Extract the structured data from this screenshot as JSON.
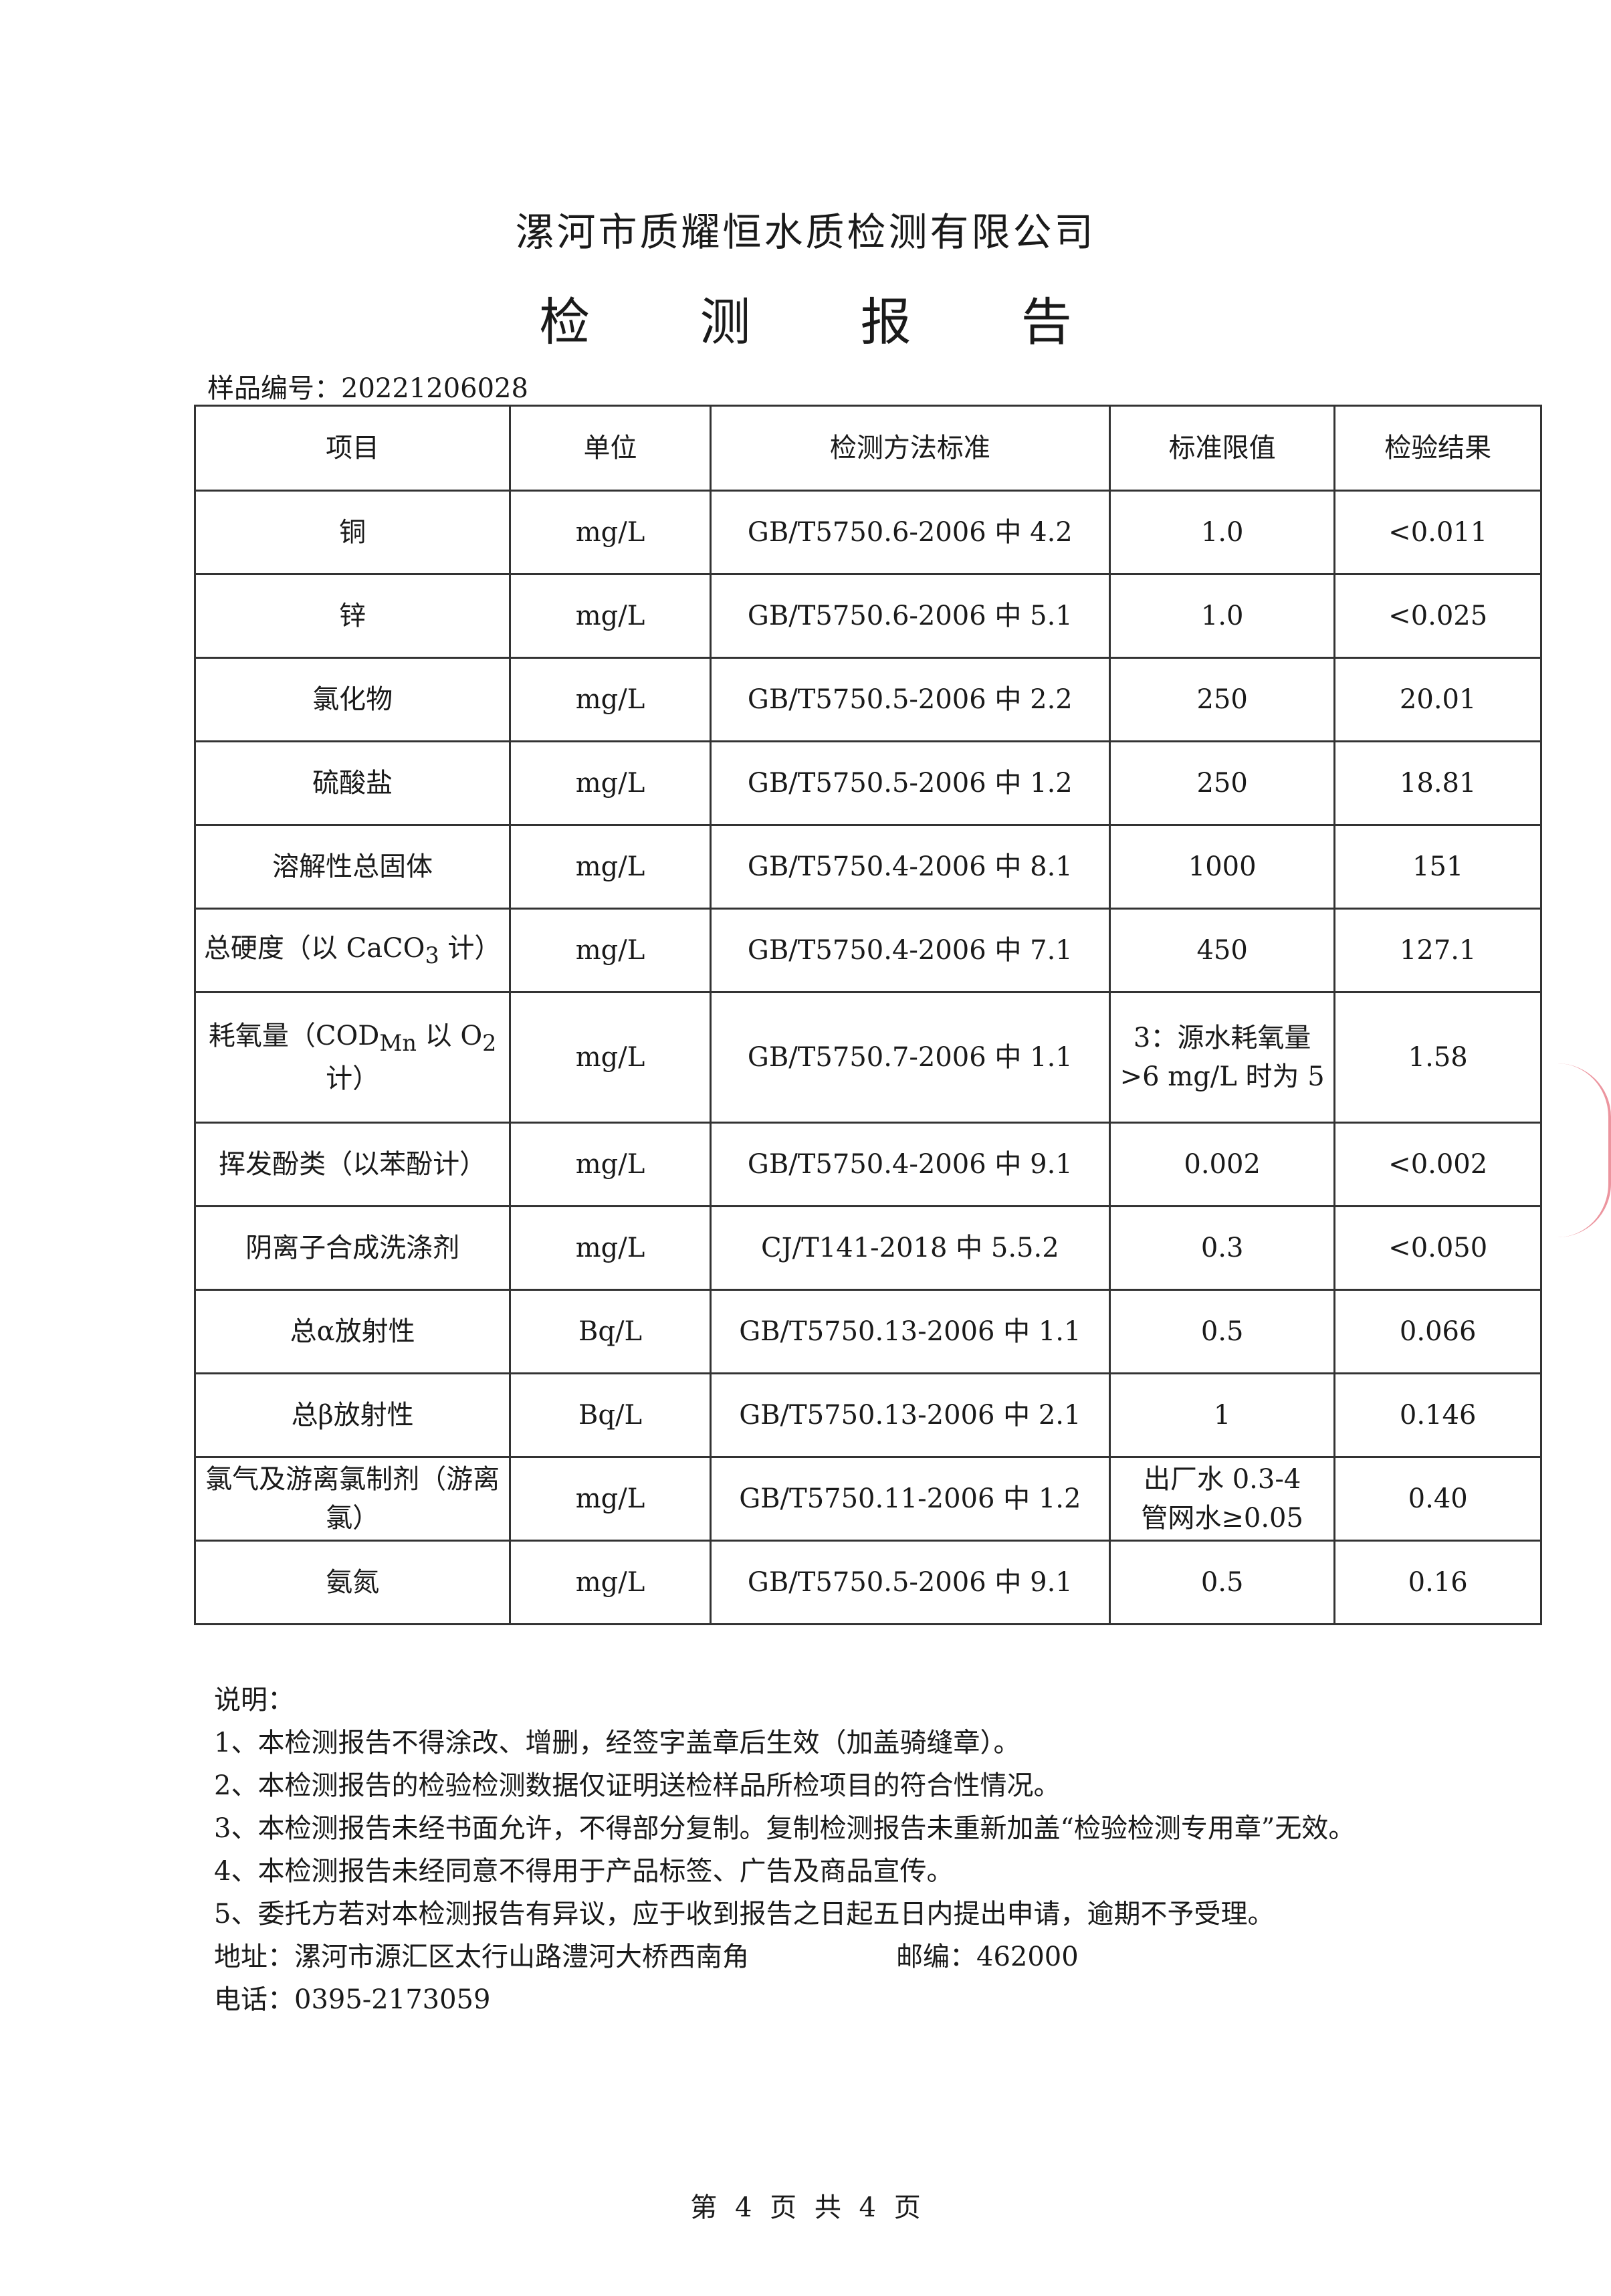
{
  "header": {
    "company": "漯河市质耀恒水质检测有限公司",
    "title": "检 测 报 告",
    "sample_no": "样品编号：20221206028"
  },
  "table": {
    "columns": [
      "项目",
      "单位",
      "检测方法标准",
      "标准限值",
      "检验结果"
    ],
    "rows": [
      {
        "item": "铜",
        "unit": "mg/L",
        "method": "GB/T5750.6-2006 中 4.2",
        "limit": "1.0",
        "result": "<0.011"
      },
      {
        "item": "锌",
        "unit": "mg/L",
        "method": "GB/T5750.6-2006 中 5.1",
        "limit": "1.0",
        "result": "<0.025"
      },
      {
        "item": "氯化物",
        "unit": "mg/L",
        "method": "GB/T5750.5-2006 中 2.2",
        "limit": "250",
        "result": "20.01"
      },
      {
        "item": "硫酸盐",
        "unit": "mg/L",
        "method": "GB/T5750.5-2006 中 1.2",
        "limit": "250",
        "result": "18.81"
      },
      {
        "item": "溶解性总固体",
        "unit": "mg/L",
        "method": "GB/T5750.4-2006 中 8.1",
        "limit": "1000",
        "result": "151"
      },
      {
        "item_pre": "总硬度（以 CaCO",
        "item_sub": "3",
        "item_post": " 计）",
        "unit": "mg/L",
        "method": "GB/T5750.4-2006 中 7.1",
        "limit": "450",
        "result": "127.1"
      },
      {
        "item_pre": "耗氧量（COD",
        "item_sub": "Mn",
        "item_mid": " 以 O",
        "item_sub2": "2",
        "item_post": " 计）",
        "unit": "mg/L",
        "method": "GB/T5750.7-2006 中 1.1",
        "limit": "3：源水耗氧量>6 mg/L 时为 5",
        "result": "1.58"
      },
      {
        "item": "挥发酚类（以苯酚计）",
        "unit": "mg/L",
        "method": "GB/T5750.4-2006 中 9.1",
        "limit": "0.002",
        "result": "<0.002"
      },
      {
        "item": "阴离子合成洗涤剂",
        "unit": "mg/L",
        "method": "CJ/T141-2018 中 5.5.2",
        "limit": "0.3",
        "result": "<0.050"
      },
      {
        "item": "总α放射性",
        "unit": "Bq/L",
        "method": "GB/T5750.13-2006 中 1.1",
        "limit": "0.5",
        "result": "0.066"
      },
      {
        "item": "总β放射性",
        "unit": "Bq/L",
        "method": "GB/T5750.13-2006 中 2.1",
        "limit": "1",
        "result": "0.146"
      },
      {
        "item": "氯气及游离氯制剂（游离氯）",
        "unit": "mg/L",
        "method": "GB/T5750.11-2006 中 1.2",
        "limit_line1": "出厂水 0.3-4",
        "limit_line2": "管网水≥0.05",
        "result": "0.40"
      },
      {
        "item": "氨氮",
        "unit": "mg/L",
        "method": "GB/T5750.5-2006 中 9.1",
        "limit": "0.5",
        "result": "0.16"
      }
    ]
  },
  "notes": {
    "heading": "说明：",
    "items": [
      "1、本检测报告不得涂改、增删，经签字盖章后生效（加盖骑缝章）。",
      "2、本检测报告的检验检测数据仅证明送检样品所检项目的符合性情况。",
      "3、本检测报告未经书面允许，不得部分复制。复制检测报告未重新加盖“检验检测专用章”无效。",
      "4、本检测报告未经同意不得用于产品标签、广告及商品宣传。",
      "5、委托方若对本检测报告有异议，应于收到报告之日起五日内提出申请，逾期不予受理。"
    ],
    "address": "地址：漯河市源汇区太行山路澧河大桥西南角",
    "postcode": "邮编：462000",
    "phone": "电话：0395-2173059"
  },
  "footer": {
    "page": "第 4 页 共 4 页"
  }
}
